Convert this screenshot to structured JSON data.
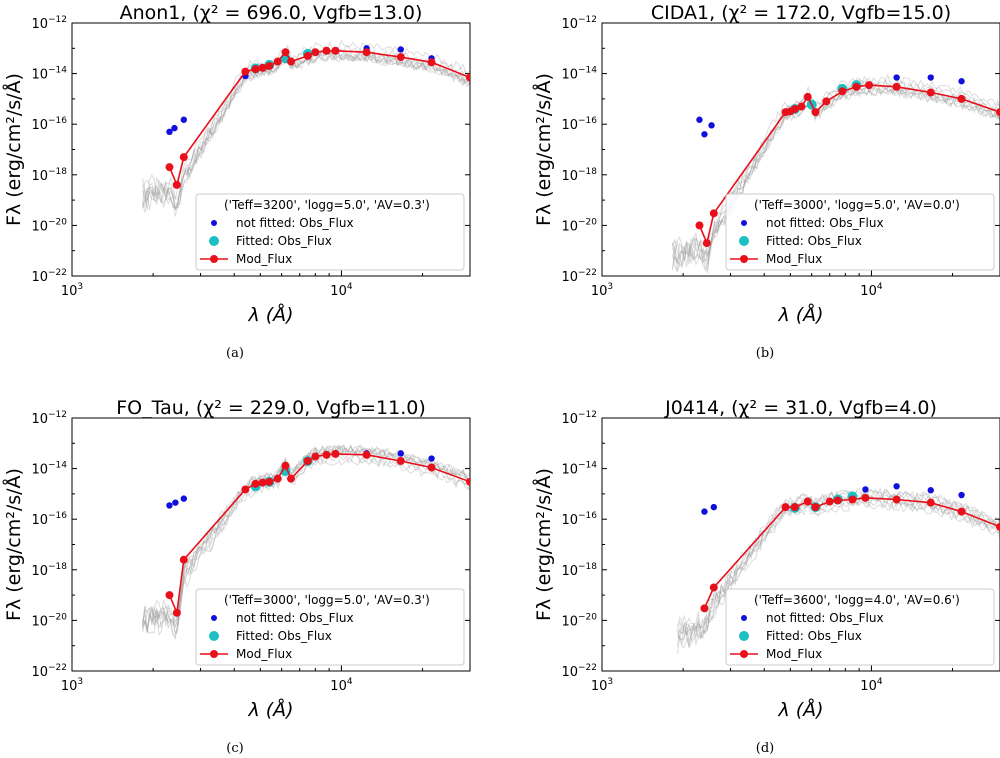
{
  "figure": {
    "caption_labels": [
      "(a)",
      "(b)",
      "(c)",
      "(d)"
    ]
  },
  "colors": {
    "model": "#e8101a",
    "not_fitted": "#1010dd",
    "fitted": "#1bbfc4",
    "grid_models": "#9a9a9a"
  },
  "chart_data": [
    {
      "type": "scatter",
      "title": "Anon1,  (χ² = 696.0,  Vgfb=13.0)",
      "xlabel": "λ (Å)",
      "ylabel": "Fλ (erg/cm²/s/Å)",
      "xscale": "log",
      "yscale": "log",
      "xlim": [
        1000,
        30000
      ],
      "ylim": [
        1e-22,
        1e-12
      ],
      "xticks": [
        "10³",
        "10⁴"
      ],
      "yticks": [
        "10⁻²²",
        "10⁻²⁰",
        "10⁻¹⁸",
        "10⁻¹⁶",
        "10⁻¹⁴",
        "10⁻¹²"
      ],
      "model_params": "('Teff=3200', 'logg=5.0', 'AV=0.3')",
      "legend": [
        "not fitted: Obs_Flux",
        "Fitted: Obs_Flux",
        "Mod_Flux"
      ],
      "legend_loc": "lower right",
      "series": [
        {
          "name": "not fitted: Obs_Flux",
          "type": "scatter",
          "x": [
            2300,
            2400,
            2600,
            4400,
            12400,
            16600,
            21600
          ],
          "y": [
            5e-17,
            7e-17,
            1.5e-16,
            8e-15,
            1e-13,
            9e-14,
            4e-14
          ]
        },
        {
          "name": "Fitted: Obs_Flux",
          "type": "scatter",
          "x": [
            4800,
            5400,
            6200,
            7500
          ],
          "y": [
            1.6e-14,
            2.2e-14,
            4e-14,
            6e-14
          ]
        },
        {
          "name": "Mod_Flux",
          "type": "line",
          "x": [
            2300,
            2450,
            2600,
            4400,
            4800,
            5100,
            5400,
            5800,
            6200,
            6500,
            7500,
            8000,
            8800,
            9500,
            12400,
            16600,
            21600,
            30000
          ],
          "y": [
            2e-18,
            4e-19,
            5e-18,
            1.2e-14,
            1.5e-14,
            1.7e-14,
            2e-14,
            3e-14,
            7e-14,
            3e-14,
            5e-14,
            7e-14,
            8e-14,
            8e-14,
            7e-14,
            4.5e-14,
            2.8e-14,
            7e-15
          ]
        }
      ]
    },
    {
      "type": "scatter",
      "title": "CIDA1,  (χ² = 172.0,  Vgfb=15.0)",
      "xlabel": "λ (Å)",
      "ylabel": "Fλ (erg/cm²/s/Å)",
      "xscale": "log",
      "yscale": "log",
      "xlim": [
        1000,
        30000
      ],
      "ylim": [
        1e-22,
        1e-12
      ],
      "xticks": [
        "10³",
        "10⁴"
      ],
      "yticks": [
        "10⁻²²",
        "10⁻²⁰",
        "10⁻¹⁸",
        "10⁻¹⁶",
        "10⁻¹⁴",
        "10⁻¹²"
      ],
      "model_params": "('Teff=3000', 'logg=5.0', 'AV=0.0')",
      "legend": [
        "not fitted: Obs_Flux",
        "Fitted: Obs_Flux",
        "Mod_Flux"
      ],
      "legend_loc": "lower right",
      "series": [
        {
          "name": "not fitted: Obs_Flux",
          "type": "scatter",
          "x": [
            2300,
            2400,
            2550,
            12400,
            16600,
            21600
          ],
          "y": [
            1.5e-16,
            4e-17,
            9e-17,
            7e-15,
            7e-15,
            5e-15
          ]
        },
        {
          "name": "Fitted: Obs_Flux",
          "type": "scatter",
          "x": [
            5200,
            6000,
            7800,
            8800
          ],
          "y": [
            4e-16,
            6e-16,
            2.5e-15,
            3.5e-15
          ]
        },
        {
          "name": "Mod_Flux",
          "type": "line",
          "x": [
            2300,
            2450,
            2600,
            4800,
            5000,
            5200,
            5500,
            5800,
            6200,
            6800,
            7800,
            8800,
            9800,
            12400,
            16600,
            21600,
            30000
          ],
          "y": [
            1e-20,
            2e-21,
            3e-20,
            3e-16,
            3.2e-16,
            4e-16,
            5e-16,
            1.2e-15,
            3e-16,
            8e-16,
            2e-15,
            3e-15,
            3.5e-15,
            3e-15,
            1.8e-15,
            1e-15,
            3e-16
          ]
        }
      ]
    },
    {
      "type": "scatter",
      "title": "FO_Tau,  (χ² = 229.0,  Vgfb=11.0)",
      "xlabel": "λ (Å)",
      "ylabel": "Fλ (erg/cm²/s/Å)",
      "xscale": "log",
      "yscale": "log",
      "xlim": [
        1000,
        30000
      ],
      "ylim": [
        1e-22,
        1e-12
      ],
      "xticks": [
        "10³",
        "10⁴"
      ],
      "yticks": [
        "10⁻²²",
        "10⁻²⁰",
        "10⁻¹⁸",
        "10⁻¹⁶",
        "10⁻¹⁴",
        "10⁻¹²"
      ],
      "model_params": "('Teff=3000', 'logg=5.0', 'AV=0.3')",
      "legend": [
        "not fitted: Obs_Flux",
        "Fitted: Obs_Flux",
        "Mod_Flux"
      ],
      "legend_loc": "lower right",
      "series": [
        {
          "name": "not fitted: Obs_Flux",
          "type": "scatter",
          "x": [
            2300,
            2420,
            2600,
            12400,
            16600,
            21600
          ],
          "y": [
            3.5e-16,
            4.5e-16,
            6.5e-16,
            4e-14,
            4e-14,
            2.5e-14
          ]
        },
        {
          "name": "Fitted: Obs_Flux",
          "type": "scatter",
          "x": [
            4800,
            5400,
            6200,
            7500
          ],
          "y": [
            2e-15,
            3e-15,
            8e-15,
            2e-14
          ]
        },
        {
          "name": "Mod_Flux",
          "type": "line",
          "x": [
            2300,
            2450,
            2600,
            4400,
            4800,
            5100,
            5400,
            5800,
            6200,
            6500,
            7500,
            8000,
            8800,
            9500,
            12400,
            16600,
            21600,
            30000
          ],
          "y": [
            1e-19,
            2e-20,
            2.5e-18,
            1.5e-15,
            2.5e-15,
            2.8e-15,
            3e-15,
            4e-15,
            1.3e-14,
            4e-15,
            2e-14,
            3e-14,
            3.5e-14,
            3.8e-14,
            3.5e-14,
            2e-14,
            1.1e-14,
            3e-15
          ]
        }
      ]
    },
    {
      "type": "scatter",
      "title": "J0414,  (χ² = 31.0,  Vgfb=4.0)",
      "xlabel": "λ (Å)",
      "ylabel": "Fλ (erg/cm²/s/Å)",
      "xscale": "log",
      "yscale": "log",
      "xlim": [
        1000,
        30000
      ],
      "ylim": [
        1e-22,
        1e-12
      ],
      "xticks": [
        "10³",
        "10⁴"
      ],
      "yticks": [
        "10⁻²²",
        "10⁻²⁰",
        "10⁻¹⁸",
        "10⁻¹⁶",
        "10⁻¹⁴",
        "10⁻¹²"
      ],
      "model_params": "('Teff=3600', 'logg=4.0', 'AV=0.6')",
      "legend": [
        "not fitted: Obs_Flux",
        "Fitted: Obs_Flux",
        "Mod_Flux"
      ],
      "legend_loc": "lower right",
      "series": [
        {
          "name": "not fitted: Obs_Flux",
          "type": "scatter",
          "x": [
            2400,
            2600,
            9500,
            12400,
            16600,
            21600
          ],
          "y": [
            2e-16,
            3e-16,
            1.5e-15,
            2e-15,
            1.4e-15,
            9e-16
          ]
        },
        {
          "name": "Fitted: Obs_Flux",
          "type": "scatter",
          "x": [
            5200,
            6200,
            7500,
            8500
          ],
          "y": [
            2.8e-16,
            3e-16,
            6e-16,
            8e-16
          ]
        },
        {
          "name": "Mod_Flux",
          "type": "line",
          "x": [
            2400,
            2600,
            4800,
            5200,
            5800,
            6200,
            7000,
            7500,
            8500,
            9500,
            12400,
            16600,
            21600,
            30000
          ],
          "y": [
            3e-20,
            2e-19,
            3e-16,
            3e-16,
            5e-16,
            3e-16,
            5e-16,
            5.5e-16,
            6e-16,
            7e-16,
            6e-16,
            4.5e-16,
            2e-16,
            5e-17
          ]
        }
      ]
    }
  ]
}
